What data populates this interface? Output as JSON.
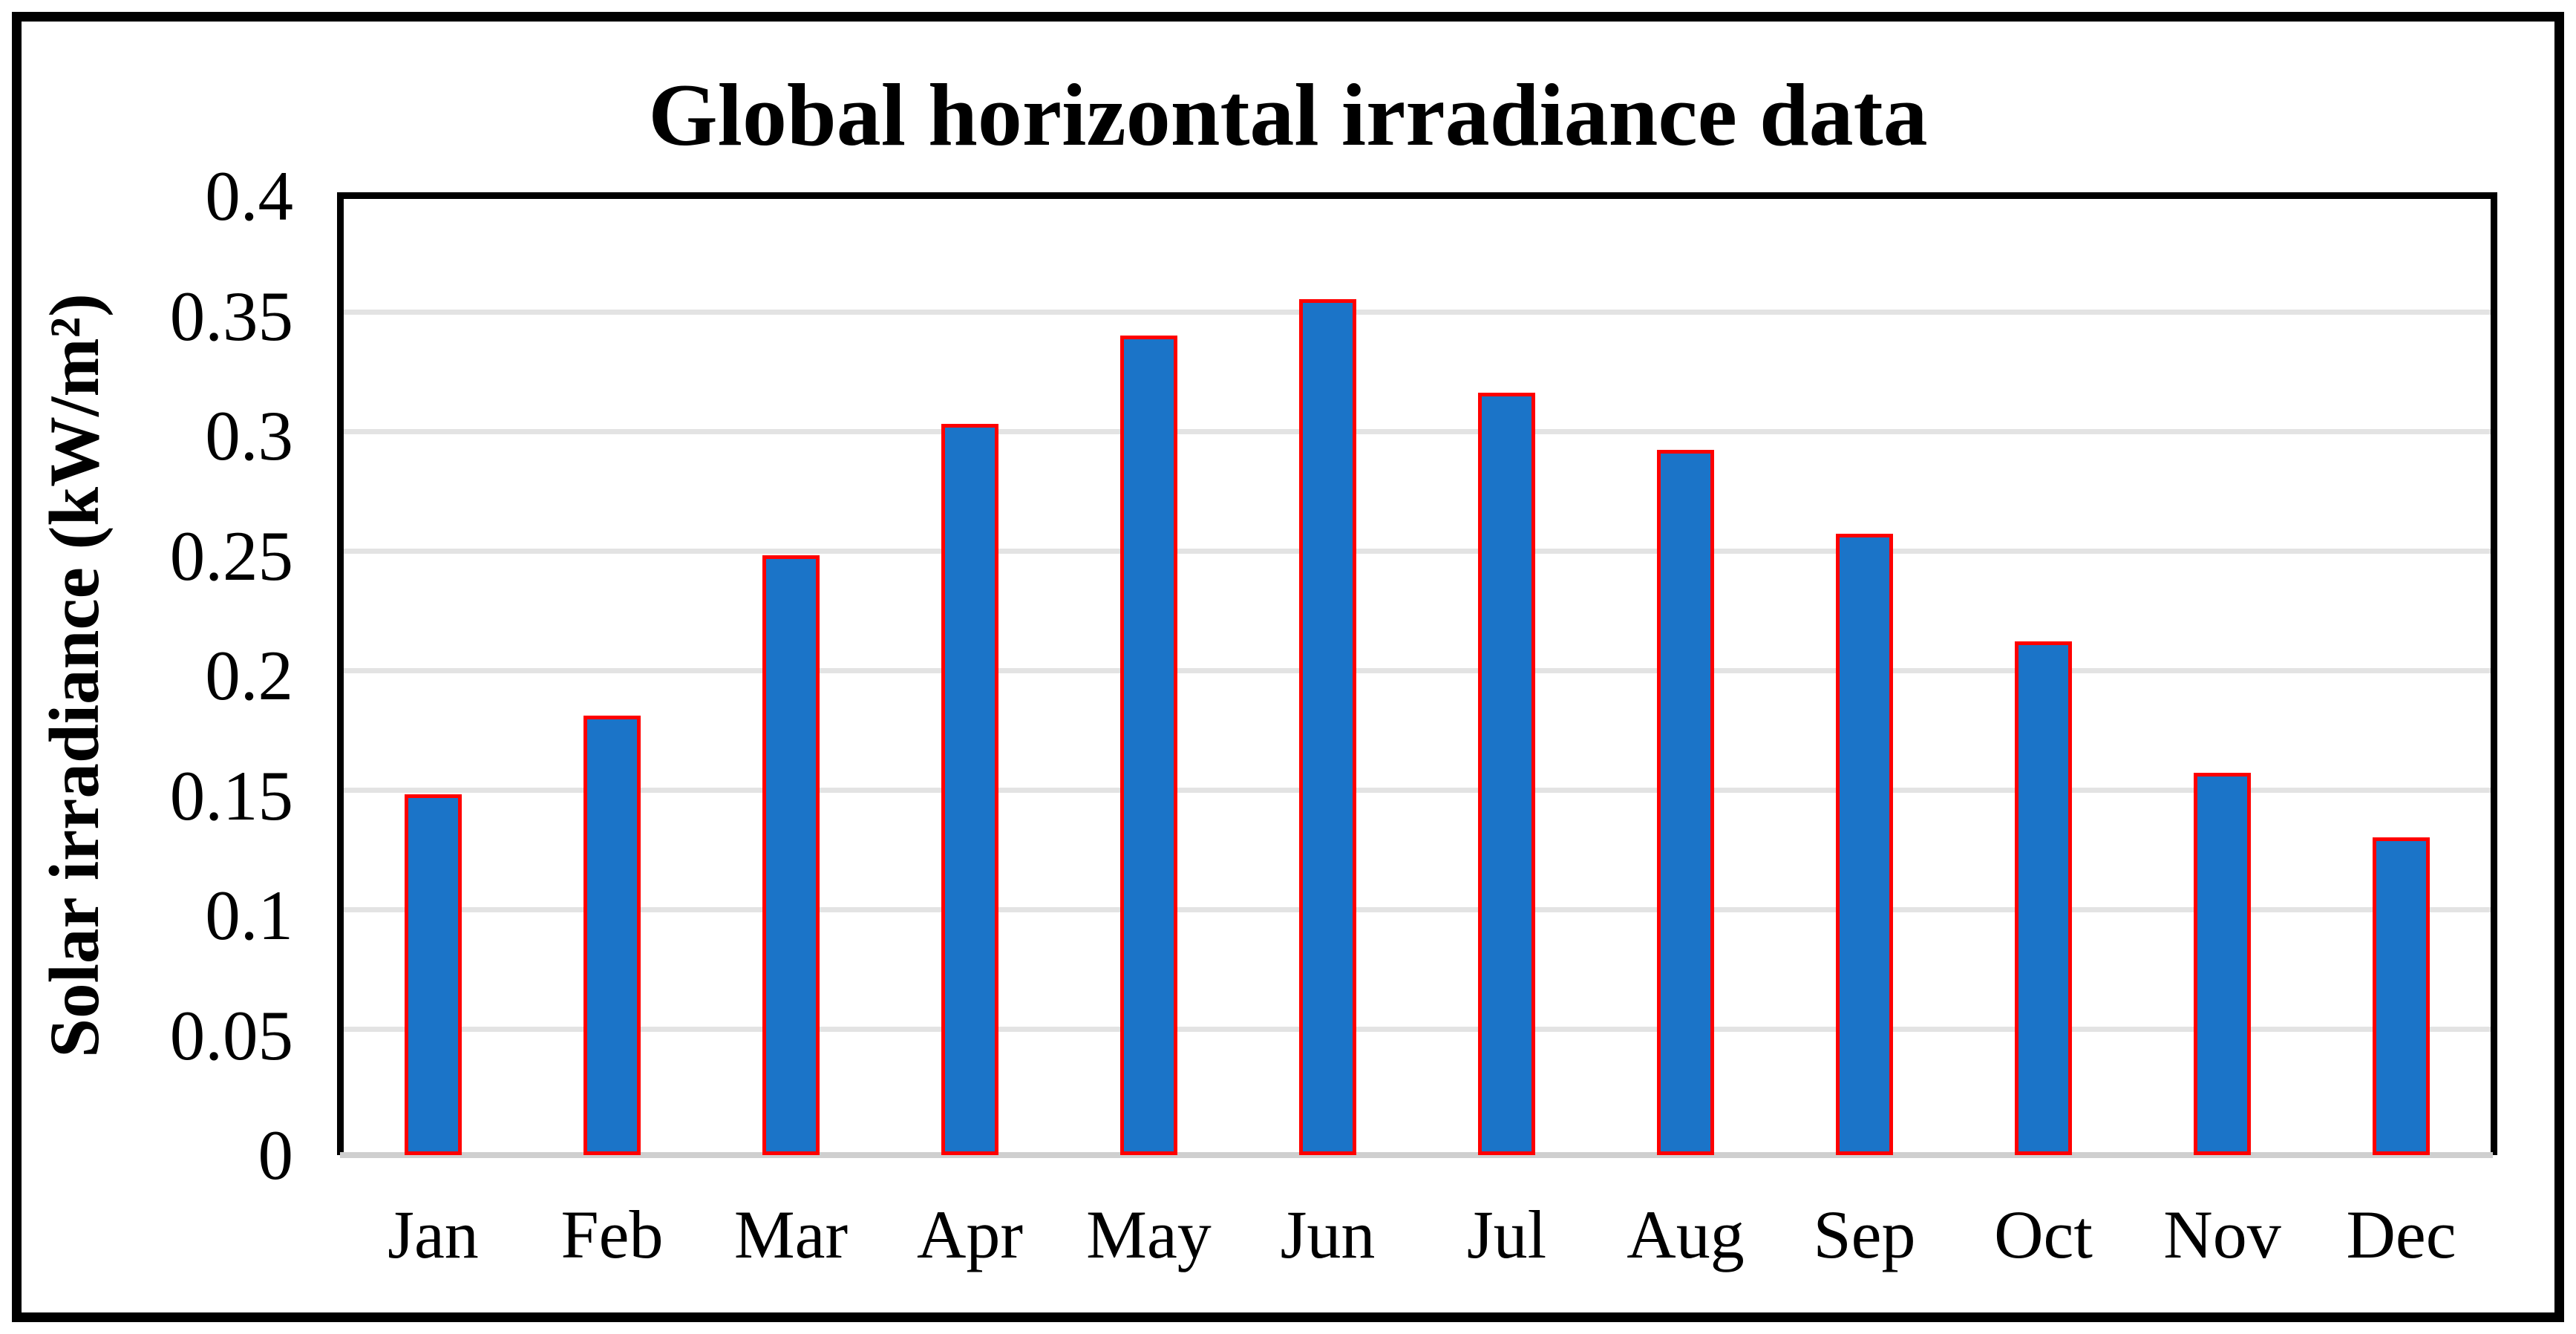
{
  "chart_data": {
    "type": "bar",
    "title": "Global horizontal irradiance data",
    "ylabel": "Solar irradiance (kW/m²)",
    "xlabel": "",
    "categories": [
      "Jan",
      "Feb",
      "Mar",
      "Apr",
      "May",
      "Jun",
      "Jul",
      "Aug",
      "Sep",
      "Oct",
      "Nov",
      "Dec"
    ],
    "values": [
      0.151,
      0.184,
      0.251,
      0.306,
      0.343,
      0.358,
      0.319,
      0.295,
      0.26,
      0.215,
      0.16,
      0.133
    ],
    "ylim": [
      0,
      0.4
    ],
    "y_tick_step": 0.05,
    "y_tick_labels": [
      "0.4",
      "0.35",
      "0.3",
      "0.25",
      "0.2",
      "0.15",
      "0.1",
      "0.05",
      "0"
    ],
    "grid": "horizontal",
    "legend": "none",
    "bar_fill_color": "#1b74c8",
    "bar_border_color": "#ff0000",
    "gridline_color": "#e3e3e3",
    "zero_line_color": "#cfcfcf",
    "axis_color": "#000000"
  }
}
